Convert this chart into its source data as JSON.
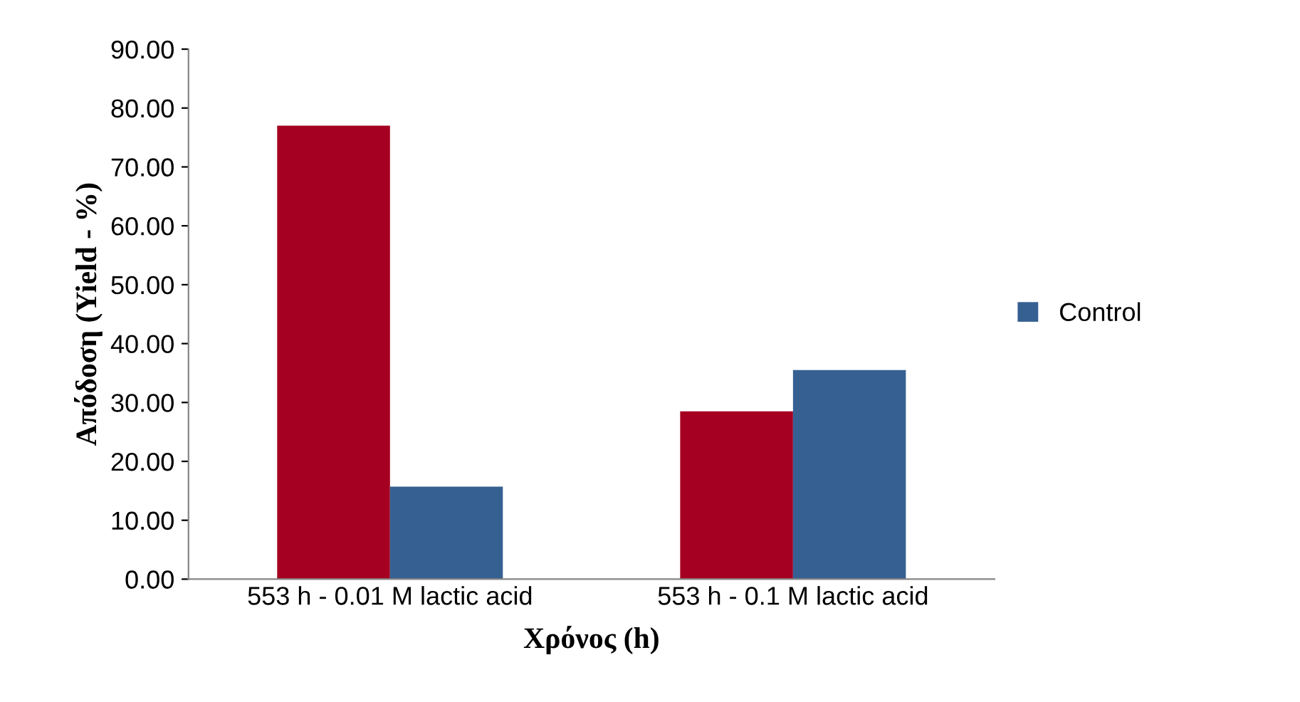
{
  "chart_data": {
    "type": "bar",
    "xlabel": "Χρόνος (h)",
    "ylabel": "Απόδοση (Yield - %)",
    "categories": [
      "553 h - 0.01 M lactic acid",
      "553 h - 0.1 M lactic acid"
    ],
    "series": [
      {
        "color": "#a50021",
        "values": [
          77.0,
          28.5
        ]
      },
      {
        "name": "Control",
        "color": "#366092",
        "values": [
          15.7,
          35.5
        ]
      }
    ],
    "ylim": [
      0,
      90
    ],
    "yticks": [
      {
        "value": 0,
        "label": "0.00"
      },
      {
        "value": 10,
        "label": "10.00"
      },
      {
        "value": 20,
        "label": "20.00"
      },
      {
        "value": 30,
        "label": "30.00"
      },
      {
        "value": 40,
        "label": "40.00"
      },
      {
        "value": 50,
        "label": "50.00"
      },
      {
        "value": 60,
        "label": "60.00"
      },
      {
        "value": 70,
        "label": "70.00"
      },
      {
        "value": 80,
        "label": "80.00"
      },
      {
        "value": 90,
        "label": "90.00"
      }
    ],
    "grid": false,
    "legend": "right"
  }
}
